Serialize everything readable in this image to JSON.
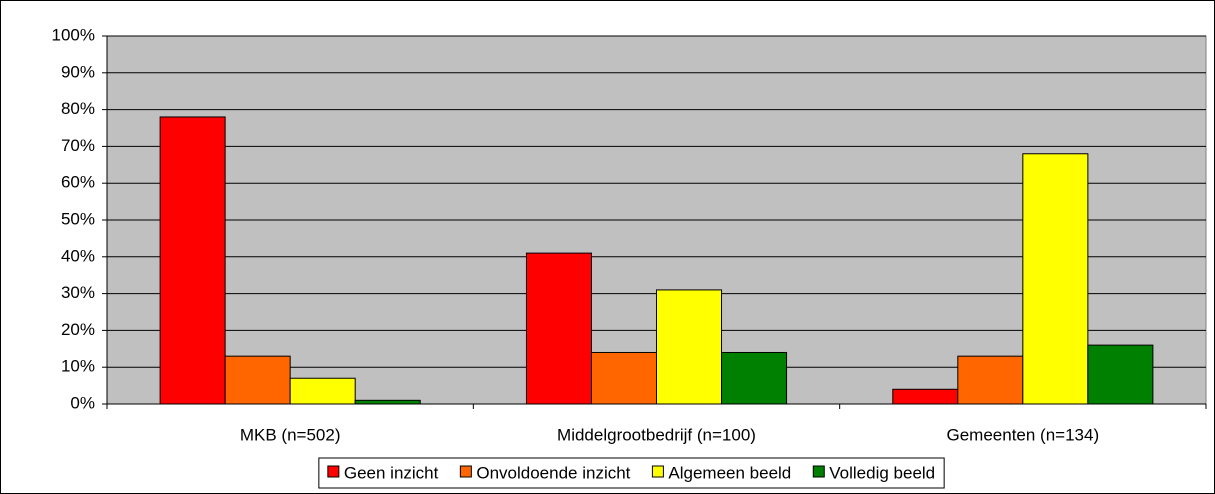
{
  "chart_data": {
    "type": "bar",
    "categories": [
      "MKB (n=502)",
      "Middelgrootbedrijf (n=100)",
      "Gemeenten (n=134)"
    ],
    "series": [
      {
        "name": "Geen inzicht",
        "color": "#ff0000",
        "values": [
          78,
          41,
          4
        ]
      },
      {
        "name": "Onvoldoende inzicht",
        "color": "#ff6600",
        "values": [
          13,
          14,
          13
        ]
      },
      {
        "name": "Algemeen beeld",
        "color": "#ffff00",
        "values": [
          7,
          31,
          68
        ]
      },
      {
        "name": "Volledig beeld",
        "color": "#008000",
        "values": [
          1,
          14,
          16
        ]
      }
    ],
    "ylim": [
      0,
      100
    ],
    "yticks": [
      {
        "value": 0,
        "label": "0%"
      },
      {
        "value": 10,
        "label": "10%"
      },
      {
        "value": 20,
        "label": "20%"
      },
      {
        "value": 30,
        "label": "30%"
      },
      {
        "value": 40,
        "label": "40%"
      },
      {
        "value": 50,
        "label": "50%"
      },
      {
        "value": 60,
        "label": "60%"
      },
      {
        "value": 70,
        "label": "70%"
      },
      {
        "value": 80,
        "label": "80%"
      },
      {
        "value": 90,
        "label": "90%"
      },
      {
        "value": 100,
        "label": "100%"
      }
    ],
    "grid": true,
    "legend": "bottom"
  }
}
